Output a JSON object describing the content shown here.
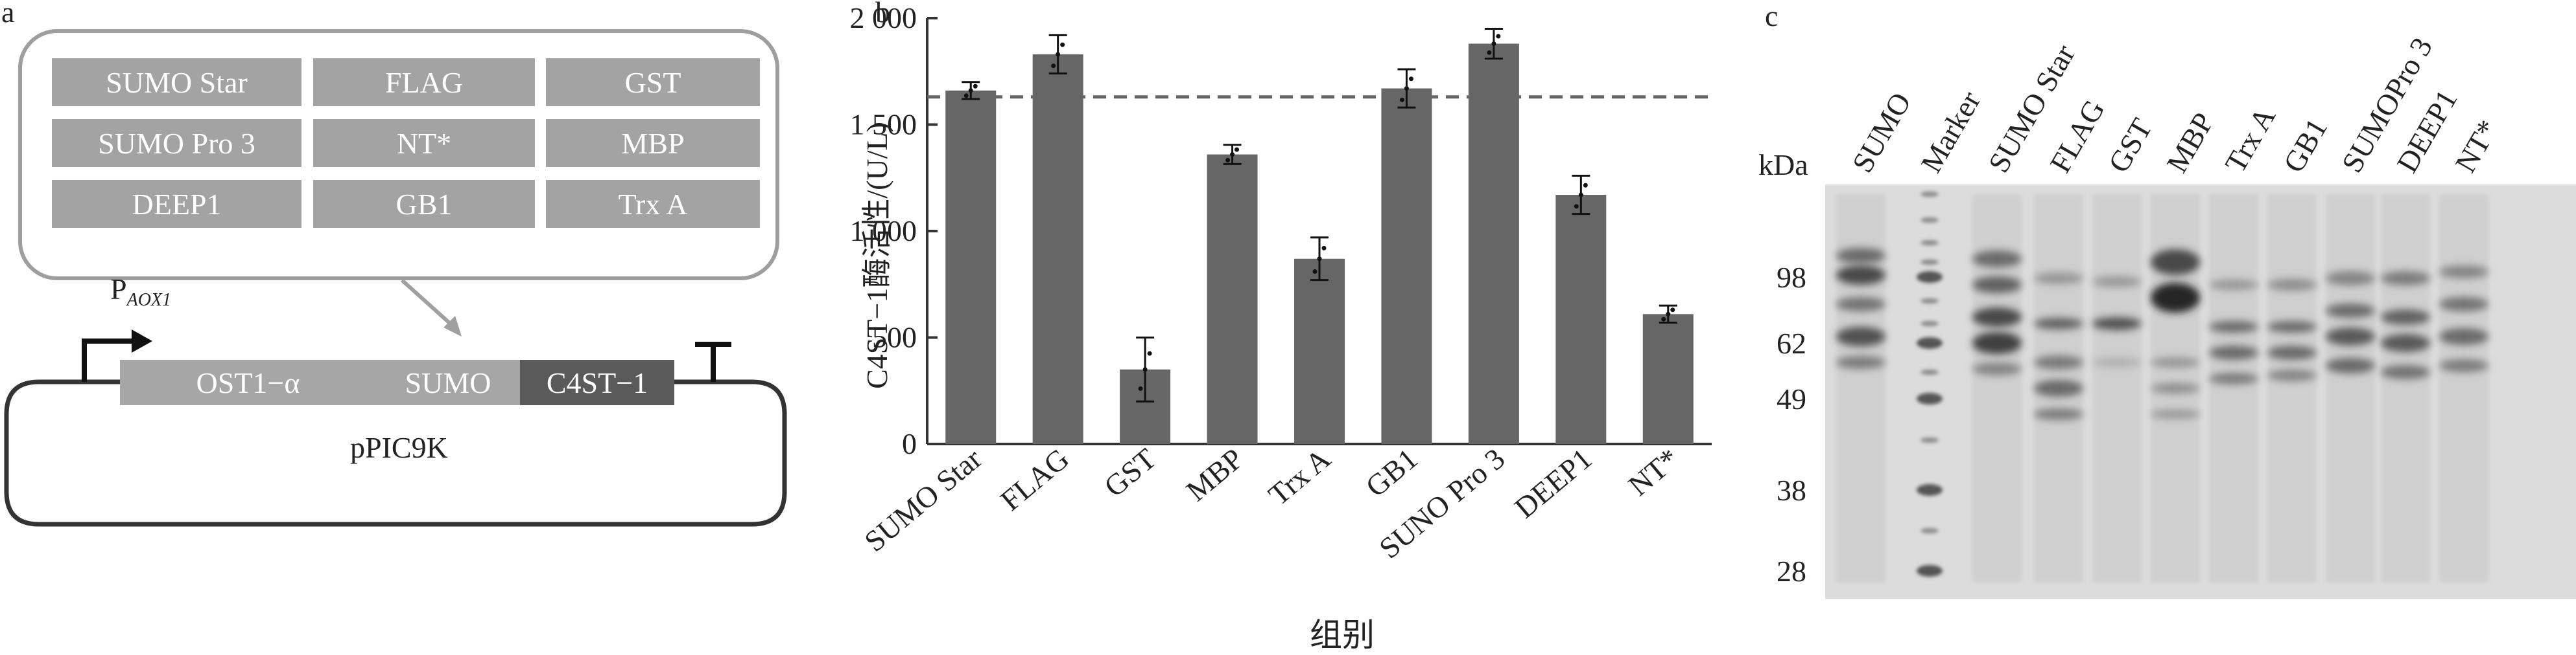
{
  "panel_a": {
    "label": "a",
    "tags": [
      "SUMO Star",
      "FLAG",
      "GST",
      "SUMO Pro 3",
      "NT*",
      "MBP",
      "DEEP1",
      "GB1",
      "Trx A"
    ],
    "promoter": "P",
    "promoter_sub": "AOX1",
    "segments": [
      "OST1−α",
      "SUMO",
      "C4ST−1"
    ],
    "plasmid": "pPIC9K"
  },
  "panel_b": {
    "label": "b"
  },
  "panel_c": {
    "label": "c",
    "kda_label": "kDa",
    "lanes": [
      "SUMO",
      "Marker",
      "SUMO Star",
      "FLAG",
      "GST",
      "MBP",
      "Trx A",
      "GB1",
      "SUMOPro 3",
      "DEEP1",
      "NT*"
    ],
    "markers": [
      "98",
      "62",
      "49",
      "38",
      "28"
    ]
  },
  "colors": {
    "bar": "#666666",
    "tag_box": "#a3a3a3",
    "segment_light": "#a6a6a6",
    "segment_dark": "#5a5a5a",
    "gel_bg": "#dcdcdc"
  },
  "chart_data": {
    "type": "bar",
    "title": "",
    "xlabel": "组别",
    "ylabel": "C4ST−1酶活性/(U/L)",
    "categories": [
      "SUMO Star",
      "FLAG",
      "GST",
      "MBP",
      "Trx A",
      "GB1",
      "SUNO Pro 3",
      "DEEP1",
      "NT*"
    ],
    "values": [
      1660,
      1830,
      350,
      1360,
      870,
      1670,
      1880,
      1170,
      610
    ],
    "errors": [
      40,
      90,
      150,
      45,
      100,
      90,
      70,
      90,
      40
    ],
    "ylim": [
      0,
      2000
    ],
    "yticks": [
      0,
      500,
      1000,
      1500,
      2000
    ],
    "ytick_labels": [
      "0",
      "500",
      "1 000",
      "1 500",
      "2 000"
    ],
    "reference_line": 1630,
    "reference_style": "dashed"
  }
}
